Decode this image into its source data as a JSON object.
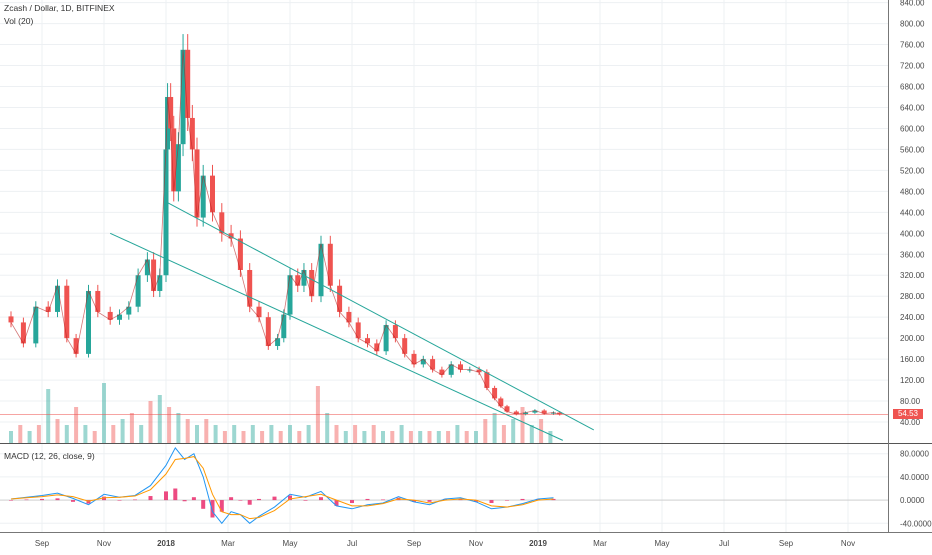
{
  "header": {
    "symbol_title": "Zcash / Dollar, 1D, BITFINEX",
    "volume_title": "Vol (20)",
    "macd_title": "MACD (12, 26, close, 9)"
  },
  "last_price": "54.53",
  "colors": {
    "up": "#26a69a",
    "down": "#ef5350",
    "trendline": "#26a69a",
    "price_line": "#ef5350",
    "macd_line": "#2196f3",
    "signal_line": "#ff9800",
    "histogram": "#e91e63"
  },
  "chart_data": [
    {
      "type": "candlestick",
      "title": "Zcash / Dollar, 1D, BITFINEX",
      "y_axis_ticks": [
        40,
        80,
        120,
        160,
        200,
        240,
        280,
        320,
        360,
        400,
        440,
        480,
        520,
        560,
        600,
        640,
        680,
        720,
        760,
        800,
        840
      ],
      "y_tick_format": "2dp",
      "ylim": [
        0,
        845
      ],
      "x_axis_ticks": [
        "Sep",
        "Nov",
        "2018",
        "Mar",
        "May",
        "Jul",
        "Sep",
        "Nov",
        "2019",
        "Mar",
        "May",
        "Jul",
        "Sep",
        "Nov"
      ],
      "x_tick_pos_month": [
        1,
        3,
        5,
        7,
        9,
        11,
        13,
        15,
        17,
        19,
        21,
        23,
        25,
        27
      ],
      "x_note": "months since Aug 2017",
      "last_price": 54.53,
      "series": [
        {
          "name": "price",
          "months": [
            0.0,
            0.4,
            0.8,
            1.2,
            1.5,
            1.8,
            2.1,
            2.5,
            2.8,
            3.2,
            3.5,
            3.8,
            4.1,
            4.4,
            4.6,
            4.8,
            5.0,
            5.05,
            5.15,
            5.25,
            5.4,
            5.55,
            5.7,
            5.85,
            6.0,
            6.2,
            6.5,
            6.8,
            7.1,
            7.4,
            7.7,
            8.0,
            8.3,
            8.6,
            8.8,
            9.0,
            9.25,
            9.45,
            9.7,
            10.0,
            10.3,
            10.6,
            10.9,
            11.2,
            11.5,
            11.8,
            12.1,
            12.4,
            12.7,
            13.0,
            13.3,
            13.6,
            13.9,
            14.2,
            14.5,
            14.8,
            15.1,
            15.35,
            15.6,
            15.8,
            16.0,
            16.3,
            16.6,
            16.9,
            17.2,
            17.5,
            17.7
          ],
          "close": [
            230,
            190,
            260,
            250,
            300,
            200,
            170,
            290,
            250,
            235,
            245,
            260,
            320,
            350,
            290,
            320,
            560,
            660,
            600,
            480,
            570,
            750,
            620,
            560,
            430,
            510,
            440,
            400,
            390,
            330,
            260,
            240,
            185,
            200,
            245,
            320,
            300,
            330,
            280,
            380,
            300,
            250,
            230,
            200,
            190,
            175,
            225,
            200,
            170,
            150,
            160,
            140,
            130,
            150,
            140,
            140,
            135,
            105,
            85,
            70,
            60,
            55,
            58,
            62,
            56,
            58,
            54.53
          ]
        },
        {
          "name": "upper trendline",
          "months": [
            5.0,
            18.8
          ],
          "values": [
            460,
            25
          ]
        },
        {
          "name": "lower trendline",
          "months": [
            3.2,
            17.8
          ],
          "values": [
            400,
            5
          ]
        }
      ]
    },
    {
      "type": "bar",
      "title": "Vol (20)",
      "months": [
        0.0,
        0.3,
        0.6,
        0.9,
        1.2,
        1.5,
        1.8,
        2.1,
        2.4,
        2.7,
        3.0,
        3.3,
        3.6,
        3.9,
        4.2,
        4.5,
        4.8,
        5.1,
        5.4,
        5.7,
        6.0,
        6.3,
        6.6,
        6.9,
        7.2,
        7.5,
        7.8,
        8.1,
        8.4,
        8.7,
        9.0,
        9.3,
        9.6,
        9.9,
        10.2,
        10.5,
        10.8,
        11.1,
        11.4,
        11.7,
        12.0,
        12.3,
        12.6,
        12.9,
        13.2,
        13.5,
        13.8,
        14.1,
        14.4,
        14.7,
        15.0,
        15.3,
        15.6,
        15.9,
        16.2,
        16.5,
        16.8,
        17.1,
        17.4
      ],
      "values": [
        0.2,
        0.3,
        0.2,
        0.3,
        0.9,
        0.4,
        0.3,
        0.6,
        0.3,
        0.2,
        1.0,
        0.3,
        0.4,
        0.5,
        0.3,
        0.7,
        0.8,
        0.6,
        0.5,
        0.4,
        0.3,
        0.4,
        0.3,
        0.2,
        0.3,
        0.2,
        0.3,
        0.2,
        0.3,
        0.2,
        0.3,
        0.2,
        0.3,
        0.95,
        0.5,
        0.3,
        0.2,
        0.3,
        0.2,
        0.3,
        0.2,
        0.2,
        0.3,
        0.2,
        0.2,
        0.2,
        0.2,
        0.2,
        0.3,
        0.2,
        0.2,
        0.4,
        0.5,
        0.3,
        0.4,
        0.6,
        0.3,
        0.4,
        0.2
      ]
    },
    {
      "type": "line",
      "title": "MACD (12, 26, close, 9)",
      "y_axis_ticks": [
        -40,
        0,
        40,
        80
      ],
      "y_tick_format": "4dp",
      "ylim": [
        -55,
        95
      ],
      "months": [
        0.0,
        0.5,
        1.0,
        1.5,
        2.0,
        2.5,
        3.0,
        3.5,
        4.0,
        4.5,
        5.0,
        5.3,
        5.6,
        5.9,
        6.2,
        6.5,
        6.8,
        7.1,
        7.4,
        7.7,
        8.0,
        8.5,
        9.0,
        9.5,
        10.0,
        10.5,
        11.0,
        11.5,
        12.0,
        12.5,
        13.0,
        13.5,
        14.0,
        14.5,
        15.0,
        15.5,
        16.0,
        16.5,
        17.0,
        17.5
      ],
      "series": [
        {
          "name": "macd",
          "values": [
            2,
            5,
            8,
            12,
            3,
            -8,
            10,
            5,
            8,
            25,
            60,
            90,
            70,
            80,
            40,
            -20,
            -40,
            -20,
            -25,
            -40,
            -28,
            -12,
            10,
            5,
            15,
            -10,
            -15,
            -8,
            -5,
            6,
            -3,
            -8,
            2,
            4,
            -3,
            -15,
            -12,
            -6,
            2,
            4
          ]
        },
        {
          "name": "signal",
          "values": [
            2,
            4,
            6,
            9,
            6,
            -2,
            4,
            5,
            7,
            18,
            45,
            70,
            72,
            75,
            55,
            10,
            -20,
            -25,
            -25,
            -32,
            -30,
            -18,
            2,
            6,
            10,
            0,
            -10,
            -10,
            -6,
            2,
            0,
            -5,
            0,
            2,
            0,
            -10,
            -12,
            -8,
            0,
            2
          ]
        },
        {
          "name": "histogram",
          "values": [
            0,
            1,
            2,
            3,
            -3,
            -6,
            6,
            0,
            1,
            7,
            15,
            20,
            -2,
            5,
            -15,
            -30,
            -20,
            5,
            0,
            -8,
            2,
            6,
            8,
            -1,
            5,
            -10,
            -5,
            2,
            1,
            4,
            -3,
            -3,
            2,
            2,
            -3,
            -5,
            0,
            2,
            2,
            2
          ]
        }
      ]
    }
  ]
}
